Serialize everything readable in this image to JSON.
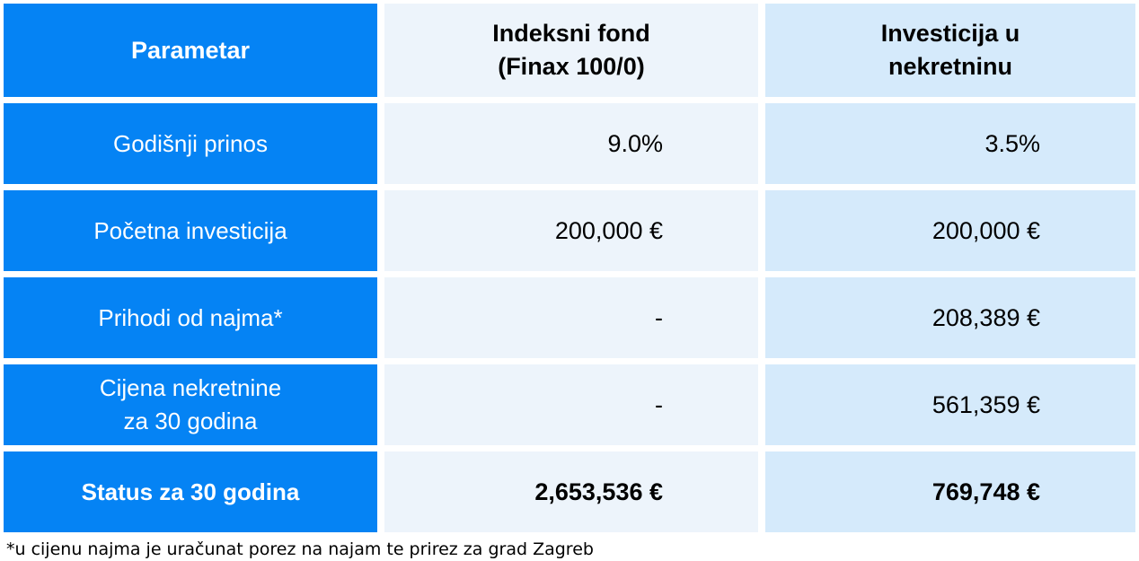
{
  "colors": {
    "blue": "#0583F4",
    "light": "#EDF4FB",
    "mid": "#D5EAFB"
  },
  "table": {
    "header": {
      "parametar": "Parametar",
      "indeksni_fond": {
        "line1": "Indeksni fond",
        "line2": "(Finax 100/0)"
      },
      "investicija": {
        "line1": "Investicija u",
        "line2": "nekretninu"
      }
    },
    "rows": [
      {
        "label": "Godišnji prinos",
        "fond": "9.0%",
        "nekretnina": "3.5%"
      },
      {
        "label": "Početna investicija",
        "fond": "200,000 €",
        "nekretnina": "200,000 €"
      },
      {
        "label": "Prihodi od najma*",
        "fond": "-",
        "nekretnina": "208,389 €"
      },
      {
        "label_line1": "Cijena nekretnine",
        "label_line2": "za 30 godina",
        "fond": "-",
        "nekretnina": "561,359 €"
      },
      {
        "label": "Status za 30 godina",
        "fond": "2,653,536 €",
        "nekretnina": "769,748 €"
      }
    ]
  },
  "footnote": "*u cijenu najma je uračunat porez na najam te prirez za grad Zagreb"
}
